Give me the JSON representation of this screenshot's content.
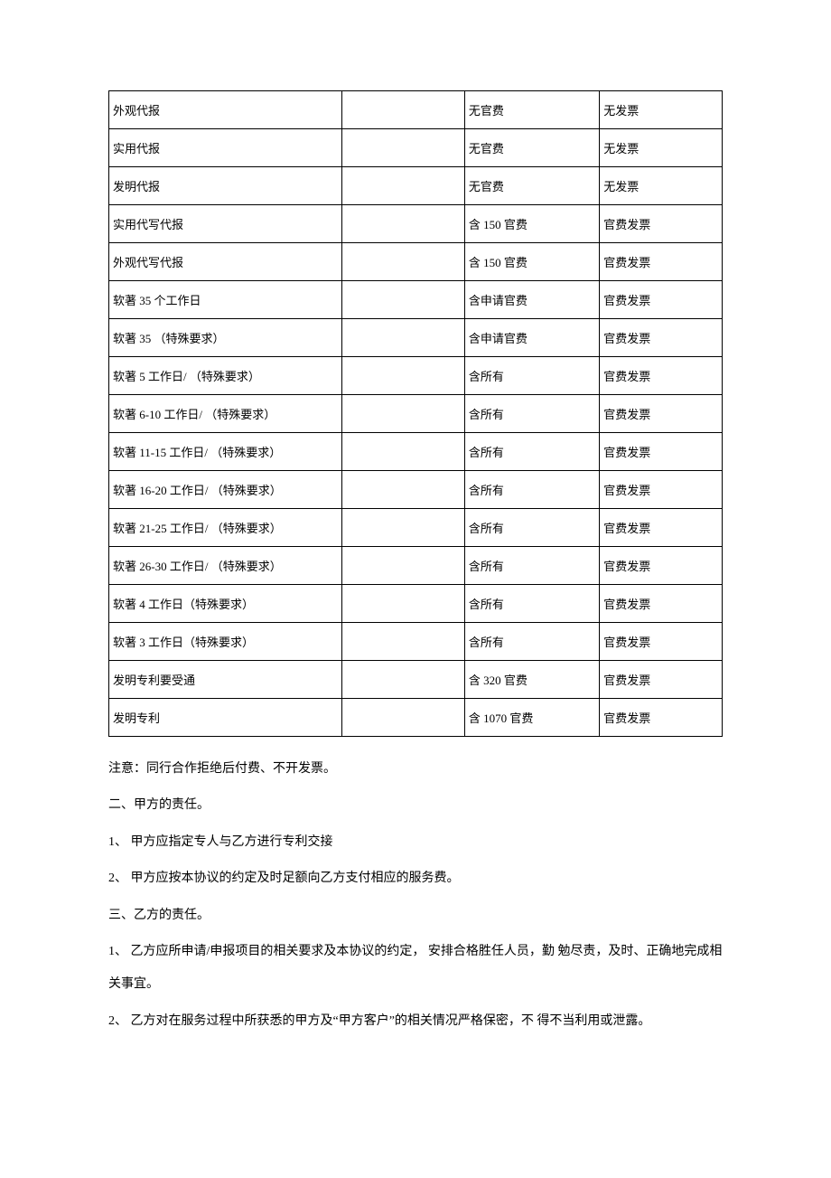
{
  "table": {
    "rows": [
      {
        "c1": "外观代报",
        "c2": "",
        "c3": "无官费",
        "c4": "无发票"
      },
      {
        "c1": "实用代报",
        "c2": "",
        "c3": "无官费",
        "c4": "无发票"
      },
      {
        "c1": "发明代报",
        "c2": "",
        "c3": "无官费",
        "c4": "无发票"
      },
      {
        "c1": "实用代写代报",
        "c2": "",
        "c3": "含 150 官费",
        "c4": "官费发票"
      },
      {
        "c1": "外观代写代报",
        "c2": "",
        "c3": "含 150 官费",
        "c4": "官费发票"
      },
      {
        "c1": "软著 35 个工作日",
        "c2": "",
        "c3": "含申请官费",
        "c4": "官费发票"
      },
      {
        "c1": "软著 35 （特殊要求）",
        "c2": "",
        "c3": "含申请官费",
        "c4": "官费发票"
      },
      {
        "c1": "软著 5 工作日/ （特殊要求）",
        "c2": "",
        "c3": "含所有",
        "c4": "官费发票"
      },
      {
        "c1": "软著 6-10 工作日/ （特殊要求）",
        "c2": "",
        "c3": "含所有",
        "c4": "官费发票"
      },
      {
        "c1": "软著 11-15 工作日/ （特殊要求）",
        "c2": "",
        "c3": "含所有",
        "c4": "官费发票"
      },
      {
        "c1": "软著 16-20 工作日/ （特殊要求）",
        "c2": "",
        "c3": "含所有",
        "c4": "官费发票"
      },
      {
        "c1": "软著 21-25 工作日/ （特殊要求）",
        "c2": "",
        "c3": "含所有",
        "c4": "官费发票"
      },
      {
        "c1": "软著 26-30 工作日/ （特殊要求）",
        "c2": "",
        "c3": "含所有",
        "c4": "官费发票"
      },
      {
        "c1": "软著 4 工作日（特殊要求）",
        "c2": "",
        "c3": "含所有",
        "c4": "官费发票"
      },
      {
        "c1": "软著 3 工作日（特殊要求）",
        "c2": "",
        "c3": "含所有",
        "c4": "官费发票"
      },
      {
        "c1": "发明专利要受通",
        "c2": "",
        "c3": "含 320 官费",
        "c4": "官费发票"
      },
      {
        "c1": "发明专利",
        "c2": "",
        "c3": "含 1070 官费",
        "c4": "官费发票"
      }
    ]
  },
  "paragraphs": {
    "note": "注意：同行合作拒绝后付费、不开发票。",
    "h2": "二、甲方的责任。",
    "p2_1": "1、 甲方应指定专人与乙方进行专利交接",
    "p2_2": "2、 甲方应按本协议的约定及时足额向乙方支付相应的服务费。",
    "h3": "三、乙方的责任。",
    "p3_1": "1、 乙方应所申请/申报项目的相关要求及本协议的约定， 安排合格胜任人员，勤 勉尽责，及时、正确地完成相关事宜。",
    "p3_2": "2、 乙方对在服务过程中所获悉的甲方及“甲方客户”的相关情况严格保密，不 得不当利用或泄露。"
  },
  "styles": {
    "background_color": "#ffffff",
    "text_color": "#000000",
    "border_color": "#000000",
    "body_fontsize": 14,
    "table_fontsize": 13
  }
}
